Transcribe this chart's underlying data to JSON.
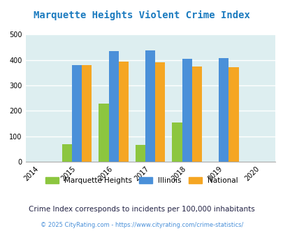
{
  "title": "Marquette Heights Violent Crime Index",
  "years": [
    2015,
    2016,
    2017,
    2018,
    2019
  ],
  "marquette_heights": [
    68,
    228,
    65,
    155,
    0
  ],
  "illinois": [
    380,
    436,
    437,
    405,
    408
  ],
  "national": [
    380,
    395,
    392,
    375,
    373
  ],
  "xlim_min": 2013.6,
  "xlim_max": 2020.4,
  "ylim": [
    0,
    500
  ],
  "yticks": [
    0,
    100,
    200,
    300,
    400,
    500
  ],
  "xticks": [
    2014,
    2015,
    2016,
    2017,
    2018,
    2019,
    2020
  ],
  "bar_width": 0.27,
  "color_mh": "#8cc63f",
  "color_il": "#4a90d9",
  "color_nat": "#f5a623",
  "bg_color": "#ddeef0",
  "title_color": "#1a7abf",
  "grid_color": "#ffffff",
  "subtitle": "Crime Index corresponds to incidents per 100,000 inhabitants",
  "footer": "© 2025 CityRating.com - https://www.cityrating.com/crime-statistics/",
  "legend_labels": [
    "Marquette Heights",
    "Illinois",
    "National"
  ],
  "subtitle_color": "#222244",
  "footer_color": "#4a90d9"
}
